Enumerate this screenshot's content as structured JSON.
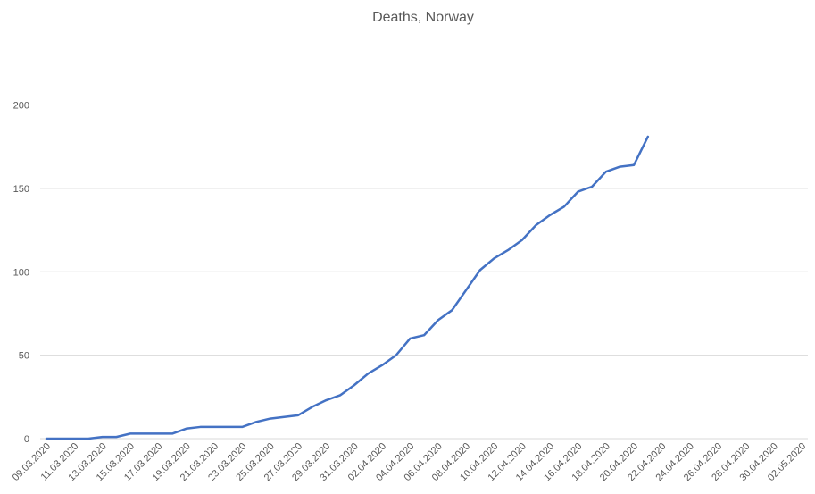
{
  "chart_data": {
    "type": "line",
    "title": "Deaths, Norway",
    "xlabel": "",
    "ylabel": "",
    "ylim": [
      0,
      200
    ],
    "yticks": [
      0,
      50,
      100,
      150,
      200
    ],
    "grid": true,
    "x_tick_labels": [
      "09.03.2020",
      "11.03.2020",
      "13.03.2020",
      "15.03.2020",
      "17.03.2020",
      "19.03.2020",
      "21.03.2020",
      "23.03.2020",
      "25.03.2020",
      "27.03.2020",
      "29.03.2020",
      "31.03.2020",
      "02.04.2020",
      "04.04.2020",
      "06.04.2020",
      "08.04.2020",
      "10.04.2020",
      "12.04.2020",
      "14.04.2020",
      "16.04.2020",
      "18.04.2020",
      "20.04.2020",
      "22.04.2020",
      "24.04.2020",
      "26.04.2020",
      "28.04.2020",
      "30.04.2020",
      "02.05.2020"
    ],
    "x": [
      "09.03.2020",
      "10.03.2020",
      "11.03.2020",
      "12.03.2020",
      "13.03.2020",
      "14.03.2020",
      "15.03.2020",
      "16.03.2020",
      "17.03.2020",
      "18.03.2020",
      "19.03.2020",
      "20.03.2020",
      "21.03.2020",
      "22.03.2020",
      "23.03.2020",
      "24.03.2020",
      "25.03.2020",
      "26.03.2020",
      "27.03.2020",
      "28.03.2020",
      "29.03.2020",
      "30.03.2020",
      "31.03.2020",
      "01.04.2020",
      "02.04.2020",
      "03.04.2020",
      "04.04.2020",
      "05.04.2020",
      "06.04.2020",
      "07.04.2020",
      "08.04.2020",
      "09.04.2020",
      "10.04.2020",
      "11.04.2020",
      "12.04.2020",
      "13.04.2020",
      "14.04.2020",
      "15.04.2020",
      "16.04.2020",
      "17.04.2020",
      "18.04.2020",
      "19.04.2020",
      "20.04.2020",
      "21.04.2020"
    ],
    "series": [
      {
        "color": "#4472c4",
        "values": [
          0,
          0,
          0,
          0,
          1,
          1,
          3,
          3,
          3,
          3,
          6,
          7,
          7,
          7,
          7,
          10,
          12,
          13,
          14,
          19,
          23,
          26,
          32,
          39,
          44,
          50,
          60,
          62,
          71,
          77,
          89,
          101,
          108,
          113,
          119,
          128,
          134,
          139,
          148,
          151,
          160,
          163,
          164,
          181
        ]
      }
    ]
  }
}
